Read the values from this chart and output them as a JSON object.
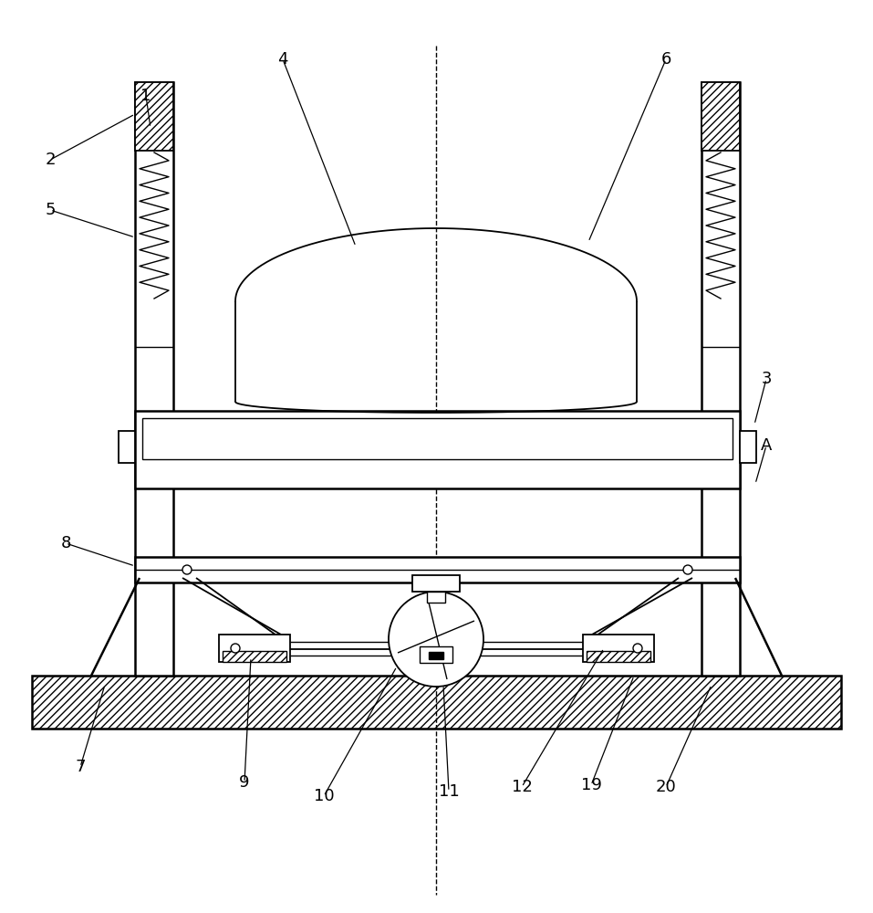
{
  "bg_color": "#ffffff",
  "line_color": "#000000",
  "fig_width": 9.57,
  "fig_height": 10.0,
  "dpi": 100
}
